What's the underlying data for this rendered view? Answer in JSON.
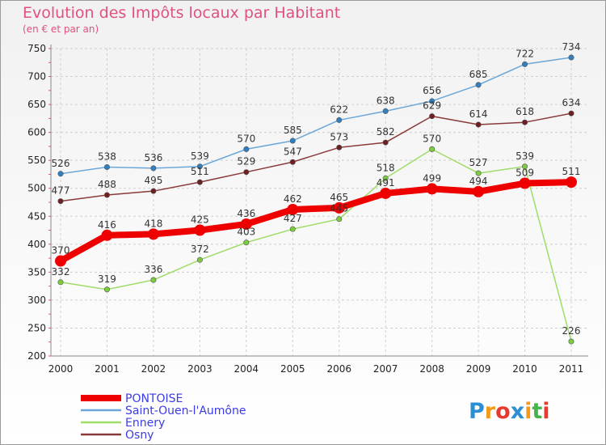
{
  "chart_data": {
    "type": "line",
    "title": "Evolution des Impôts locaux par Habitant",
    "subtitle": "(en € et par an)",
    "categories": [
      "2000",
      "2001",
      "2002",
      "2003",
      "2004",
      "2005",
      "2006",
      "2007",
      "2008",
      "2009",
      "2010",
      "2011"
    ],
    "ylim": [
      200,
      750
    ],
    "yticks": [
      200,
      250,
      300,
      350,
      400,
      450,
      500,
      550,
      600,
      650,
      700,
      750
    ],
    "grid": true,
    "legend_position": "bottom-left",
    "series": [
      {
        "name": "Saint-Ouen-l'Aumône",
        "color": "#6aa7d8",
        "point_color": "#2f7fc1",
        "width": 1.5,
        "values": [
          526,
          538,
          536,
          539,
          570,
          585,
          622,
          638,
          656,
          685,
          722,
          734
        ]
      },
      {
        "name": "Osny",
        "color": "#8b3a3a",
        "point_color": "#6e1f1f",
        "width": 1.5,
        "values": [
          477,
          488,
          495,
          511,
          529,
          547,
          573,
          582,
          629,
          614,
          618,
          634
        ]
      },
      {
        "name": "Ennery",
        "color": "#9fdc6a",
        "point_color": "#7ccd3e",
        "width": 1.5,
        "values": [
          332,
          319,
          336,
          372,
          403,
          427,
          445,
          518,
          570,
          527,
          539,
          226
        ]
      },
      {
        "name": "PONTOISE",
        "color": "#ee0000",
        "point_color": "#ee0000",
        "width": 8,
        "values": [
          370,
          416,
          418,
          425,
          436,
          462,
          465,
          491,
          499,
          494,
          509,
          511
        ]
      }
    ]
  },
  "legend": [
    {
      "label": "PONTOISE",
      "color": "#ee0000",
      "thick": true
    },
    {
      "label": "Saint-Ouen-l'Aumône",
      "color": "#6aa7d8",
      "thick": false
    },
    {
      "label": "Ennery",
      "color": "#9fdc6a",
      "thick": false
    },
    {
      "label": "Osny",
      "color": "#8b3a3a",
      "thick": false
    }
  ],
  "logo": {
    "text": "Proxiti",
    "letters": [
      "P",
      "r",
      "o",
      "x",
      "i",
      "t",
      "i"
    ],
    "colors": [
      "#2b8fd6",
      "#f39a1b",
      "#e8392f",
      "#2b8fd6",
      "#f39a1b",
      "#43b649",
      "#e8392f"
    ]
  }
}
